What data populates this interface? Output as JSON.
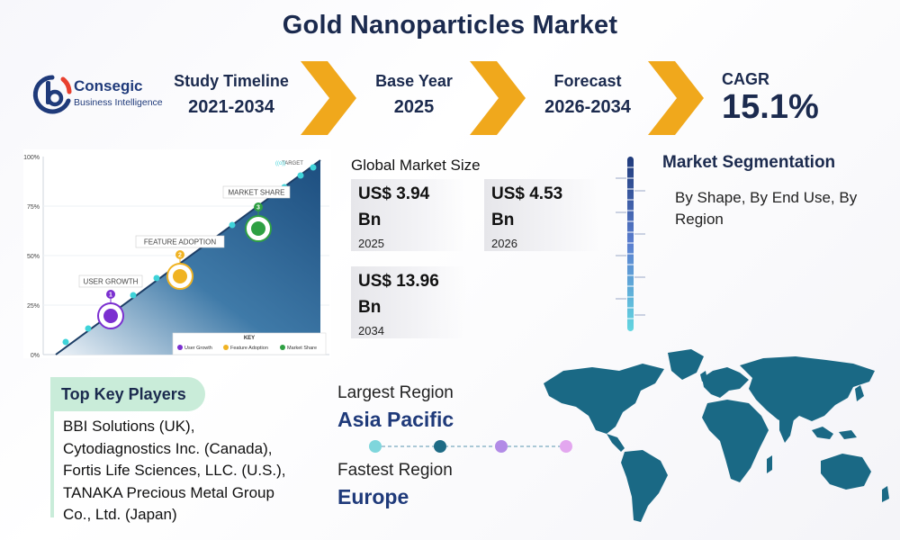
{
  "header": {
    "title": "Gold Nanoparticles Market"
  },
  "logo": {
    "name": "Consegic",
    "sub": "Business Intelligence",
    "letter": "c"
  },
  "timeline": [
    {
      "label": "Study Timeline",
      "value": "2021-2034"
    },
    {
      "label": "Base Year",
      "value": "2025"
    },
    {
      "label": "Forecast",
      "value": "2026-2034"
    }
  ],
  "cagr": {
    "label": "CAGR",
    "value": "15.1%"
  },
  "growth_graphic": {
    "y_ticks": [
      "100%",
      "75%",
      "50%",
      "25%",
      "0%"
    ],
    "target_label": "TARGET",
    "milestones": [
      {
        "num": "1",
        "label": "USER GROWTH",
        "color": "#7b2fd0"
      },
      {
        "num": "2",
        "label": "FEATURE ADOPTION",
        "color": "#f0b323"
      },
      {
        "num": "3",
        "label": "MARKET SHARE",
        "color": "#2ea043"
      }
    ],
    "key_title": "KEY",
    "key_items": [
      "User Growth",
      "Feature Adoption",
      "Market Share"
    ],
    "colors": {
      "area_dark": "#1d4e7f",
      "area_light": "#e6edf5",
      "dot": "#3fd3d9"
    }
  },
  "market_size": {
    "title": "Global Market Size",
    "items": [
      {
        "line1": "US$ 3.94",
        "line2": "Bn",
        "year": "2025"
      },
      {
        "line1": "US$ 4.53",
        "line2": "Bn",
        "year": "2026"
      },
      {
        "line1": "US$ 13.96",
        "line2": "Bn",
        "year": "2034"
      }
    ]
  },
  "segmentation": {
    "title": "Market Segmentation",
    "text": "By Shape, By End Use, By Region"
  },
  "key_players": {
    "title": "Top Key Players",
    "lines": [
      "BBI Solutions (UK),",
      "Cytodiagnostics Inc. (Canada),",
      "Fortis Life Sciences, LLC. (U.S.),",
      "TANAKA Precious Metal Group",
      "Co., Ltd. (Japan)"
    ]
  },
  "regions": {
    "largest_label": "Largest Region",
    "largest_value": "Asia Pacific",
    "fastest_label": "Fastest Region",
    "fastest_value": "Europe",
    "dot_colors": [
      "#7fd6dc",
      "#1e6b85",
      "#b28be6",
      "#e3a7ef"
    ]
  },
  "colors": {
    "accent_orange": "#f0a81c",
    "navy": "#1b2a4e",
    "map_teal": "#1a6985"
  }
}
